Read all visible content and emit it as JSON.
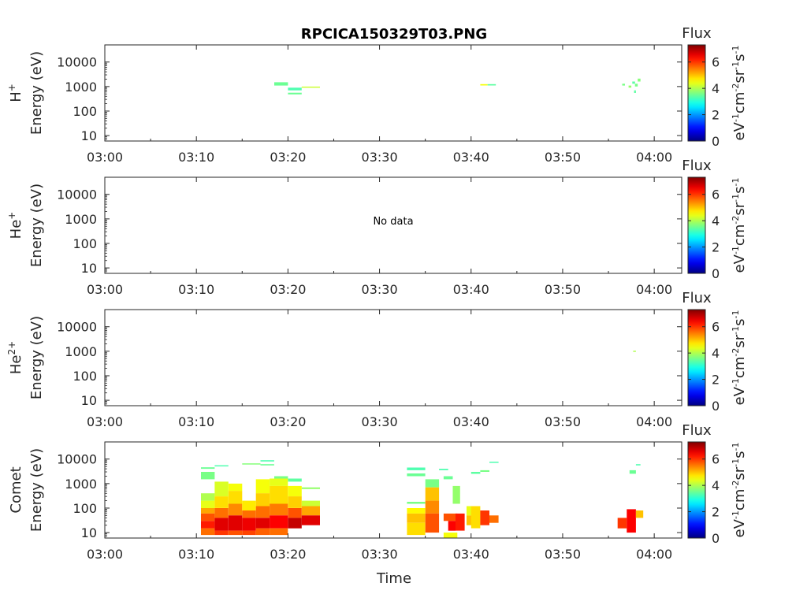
{
  "title": "RPCICA150329T03.PNG",
  "xlabel": "Time",
  "colorbar": {
    "label": "Flux",
    "units_base": [
      "eV",
      "cm",
      "sr",
      "s"
    ],
    "units_exp": [
      "-1",
      "-2",
      "-1",
      "-1"
    ],
    "ticks": [
      "0",
      "2",
      "4",
      "6"
    ],
    "range": [
      0,
      7.3
    ]
  },
  "colors": {
    "axis": "#262626",
    "background": "#ffffff"
  },
  "chart_data": [
    {
      "type": "heatmap",
      "species": "H",
      "species_sup": "+",
      "ylabel": "Energy (eV)",
      "yscale": "log",
      "ylim": [
        6,
        50000
      ],
      "yticks": [
        "10",
        "100",
        "1000",
        "10000"
      ],
      "xlim": [
        "03:00",
        "04:03"
      ],
      "xticks": [
        "03:00",
        "03:10",
        "03:20",
        "03:30",
        "03:40",
        "03:50",
        "04:00"
      ],
      "no_data": "",
      "cells": [
        {
          "t0": "03:18.5",
          "t1": "03:20.0",
          "e0": 1100,
          "e1": 1500,
          "flux": 3.5
        },
        {
          "t0": "03:20.0",
          "t1": "03:21.5",
          "e0": 700,
          "e1": 900,
          "flux": 3.3
        },
        {
          "t0": "03:20.0",
          "t1": "03:21.5",
          "e0": 480,
          "e1": 560,
          "flux": 3.5
        },
        {
          "t0": "03:21.5",
          "t1": "03:23.5",
          "e0": 900,
          "e1": 1000,
          "flux": 4.2
        },
        {
          "t0": "03:41.0",
          "t1": "03:41.8",
          "e0": 1100,
          "e1": 1250,
          "flux": 4.5
        },
        {
          "t0": "03:41.8",
          "t1": "03:42.7",
          "e0": 1100,
          "e1": 1250,
          "flux": 3.4
        },
        {
          "t0": "03:56.5",
          "t1": "03:56.8",
          "e0": 1100,
          "e1": 1300,
          "flux": 3.6
        },
        {
          "t0": "03:57.2",
          "t1": "03:57.5",
          "e0": 900,
          "e1": 1100,
          "flux": 3.8
        },
        {
          "t0": "03:57.6",
          "t1": "03:57.9",
          "e0": 1300,
          "e1": 1600,
          "flux": 3.4
        },
        {
          "t0": "03:57.9",
          "t1": "03:58.2",
          "e0": 1000,
          "e1": 1300,
          "flux": 3.6
        },
        {
          "t0": "03:58.2",
          "t1": "03:58.5",
          "e0": 1600,
          "e1": 2100,
          "flux": 3.7
        },
        {
          "t0": "03:57.8",
          "t1": "03:58.0",
          "e0": 550,
          "e1": 700,
          "flux": 3.4
        }
      ]
    },
    {
      "type": "heatmap",
      "species": "He",
      "species_sup": "+",
      "ylabel": "Energy (eV)",
      "yscale": "log",
      "ylim": [
        6,
        50000
      ],
      "yticks": [
        "10",
        "100",
        "1000",
        "10000"
      ],
      "xlim": [
        "03:00",
        "04:03"
      ],
      "xticks": [
        "03:00",
        "03:10",
        "03:20",
        "03:30",
        "03:40",
        "03:50",
        "04:00"
      ],
      "no_data": "No data",
      "cells": []
    },
    {
      "type": "heatmap",
      "species": "He",
      "species_sup": "2+",
      "ylabel": "Energy (eV)",
      "yscale": "log",
      "ylim": [
        6,
        50000
      ],
      "yticks": [
        "10",
        "100",
        "1000",
        "10000"
      ],
      "xlim": [
        "03:00",
        "04:03"
      ],
      "xticks": [
        "03:00",
        "03:10",
        "03:20",
        "03:30",
        "03:40",
        "03:50",
        "04:00"
      ],
      "no_data": "",
      "cells": [
        {
          "t0": "03:57.7",
          "t1": "03:58.0",
          "e0": 950,
          "e1": 1050,
          "flux": 4.0
        }
      ]
    },
    {
      "type": "heatmap",
      "species": "Comet",
      "species_sup": "",
      "ylabel": "Energy (eV)",
      "yscale": "log",
      "ylim": [
        6,
        50000
      ],
      "yticks": [
        "10",
        "100",
        "1000",
        "10000"
      ],
      "xlim": [
        "03:00",
        "04:03"
      ],
      "xticks": [
        "03:00",
        "03:10",
        "03:20",
        "03:30",
        "03:40",
        "03:50",
        "04:00"
      ],
      "no_data": "",
      "cells": [
        {
          "t0": "03:10.5",
          "t1": "03:12.0",
          "e0": 4000,
          "e1": 4600,
          "flux": 3.5
        },
        {
          "t0": "03:10.5",
          "t1": "03:12.0",
          "e0": 1500,
          "e1": 3000,
          "flux": 3.6
        },
        {
          "t0": "03:12.0",
          "t1": "03:13.5",
          "e0": 5000,
          "e1": 5600,
          "flux": 3.3
        },
        {
          "t0": "03:15.0",
          "t1": "03:17.0",
          "e0": 6000,
          "e1": 6700,
          "flux": 3.7
        },
        {
          "t0": "03:17.0",
          "t1": "03:18.5",
          "e0": 8000,
          "e1": 9000,
          "flux": 3.3
        },
        {
          "t0": "03:17.0",
          "t1": "03:18.5",
          "e0": 5500,
          "e1": 6200,
          "flux": 3.5
        },
        {
          "t0": "03:18.5",
          "t1": "03:20.0",
          "e0": 1500,
          "e1": 2000,
          "flux": 3.6
        },
        {
          "t0": "03:20.0",
          "t1": "03:21.5",
          "e0": 1200,
          "e1": 1600,
          "flux": 3.4
        },
        {
          "t0": "03:21.5",
          "t1": "03:23.5",
          "e0": 600,
          "e1": 700,
          "flux": 3.8
        },
        {
          "t0": "03:10.5",
          "t1": "03:12.0",
          "e0": 200,
          "e1": 400,
          "flux": 4.0
        },
        {
          "t0": "03:10.5",
          "t1": "03:12.0",
          "e0": 100,
          "e1": 200,
          "flux": 4.4
        },
        {
          "t0": "03:10.5",
          "t1": "03:12.0",
          "e0": 60,
          "e1": 100,
          "flux": 5.2
        },
        {
          "t0": "03:10.5",
          "t1": "03:12.0",
          "e0": 30,
          "e1": 60,
          "flux": 5.8
        },
        {
          "t0": "03:10.5",
          "t1": "03:12.0",
          "e0": 15,
          "e1": 30,
          "flux": 6.2
        },
        {
          "t0": "03:10.5",
          "t1": "03:12.0",
          "e0": 8,
          "e1": 15,
          "flux": 5.6
        },
        {
          "t0": "03:12.0",
          "t1": "03:13.5",
          "e0": 300,
          "e1": 1200,
          "flux": 4.3
        },
        {
          "t0": "03:12.0",
          "t1": "03:13.5",
          "e0": 100,
          "e1": 300,
          "flux": 4.8
        },
        {
          "t0": "03:12.0",
          "t1": "03:13.5",
          "e0": 40,
          "e1": 100,
          "flux": 5.6
        },
        {
          "t0": "03:12.0",
          "t1": "03:13.5",
          "e0": 12,
          "e1": 40,
          "flux": 6.6
        },
        {
          "t0": "03:12.0",
          "t1": "03:13.5",
          "e0": 8,
          "e1": 12,
          "flux": 6.0
        },
        {
          "t0": "03:13.5",
          "t1": "03:15.0",
          "e0": 500,
          "e1": 1000,
          "flux": 4.5
        },
        {
          "t0": "03:13.5",
          "t1": "03:15.0",
          "e0": 150,
          "e1": 500,
          "flux": 4.8
        },
        {
          "t0": "03:13.5",
          "t1": "03:15.0",
          "e0": 50,
          "e1": 150,
          "flux": 5.4
        },
        {
          "t0": "03:13.5",
          "t1": "03:15.0",
          "e0": 12,
          "e1": 50,
          "flux": 6.6
        },
        {
          "t0": "03:13.5",
          "t1": "03:15.0",
          "e0": 8,
          "e1": 12,
          "flux": 5.8
        },
        {
          "t0": "03:15.0",
          "t1": "03:16.5",
          "e0": 80,
          "e1": 200,
          "flux": 4.7
        },
        {
          "t0": "03:15.0",
          "t1": "03:16.5",
          "e0": 40,
          "e1": 80,
          "flux": 5.6
        },
        {
          "t0": "03:15.0",
          "t1": "03:16.5",
          "e0": 12,
          "e1": 40,
          "flux": 6.5
        },
        {
          "t0": "03:15.0",
          "t1": "03:16.5",
          "e0": 8,
          "e1": 12,
          "flux": 5.9
        },
        {
          "t0": "03:16.5",
          "t1": "03:18.0",
          "e0": 400,
          "e1": 1500,
          "flux": 4.5
        },
        {
          "t0": "03:16.5",
          "t1": "03:18.0",
          "e0": 120,
          "e1": 400,
          "flux": 4.9
        },
        {
          "t0": "03:16.5",
          "t1": "03:18.0",
          "e0": 40,
          "e1": 120,
          "flux": 5.6
        },
        {
          "t0": "03:16.5",
          "t1": "03:18.0",
          "e0": 15,
          "e1": 40,
          "flux": 6.6
        },
        {
          "t0": "03:16.5",
          "t1": "03:18.0",
          "e0": 8,
          "e1": 15,
          "flux": 5.7
        },
        {
          "t0": "03:18.0",
          "t1": "03:20.0",
          "e0": 800,
          "e1": 1600,
          "flux": 4.4
        },
        {
          "t0": "03:18.0",
          "t1": "03:20.0",
          "e0": 150,
          "e1": 800,
          "flux": 4.8
        },
        {
          "t0": "03:18.0",
          "t1": "03:20.0",
          "e0": 50,
          "e1": 150,
          "flux": 5.5
        },
        {
          "t0": "03:18.0",
          "t1": "03:20.0",
          "e0": 15,
          "e1": 50,
          "flux": 6.4
        },
        {
          "t0": "03:18.0",
          "t1": "03:20.0",
          "e0": 8,
          "e1": 15,
          "flux": 5.6
        },
        {
          "t0": "03:20.0",
          "t1": "03:21.5",
          "e0": 300,
          "e1": 800,
          "flux": 4.5
        },
        {
          "t0": "03:20.0",
          "t1": "03:21.5",
          "e0": 100,
          "e1": 300,
          "flux": 4.9
        },
        {
          "t0": "03:20.0",
          "t1": "03:21.5",
          "e0": 40,
          "e1": 100,
          "flux": 5.8
        },
        {
          "t0": "03:20.0",
          "t1": "03:21.5",
          "e0": 15,
          "e1": 40,
          "flux": 6.8
        },
        {
          "t0": "03:21.5",
          "t1": "03:23.5",
          "e0": 120,
          "e1": 200,
          "flux": 4.2
        },
        {
          "t0": "03:21.5",
          "t1": "03:23.5",
          "e0": 50,
          "e1": 120,
          "flux": 5.2
        },
        {
          "t0": "03:21.5",
          "t1": "03:23.5",
          "e0": 20,
          "e1": 50,
          "flux": 6.6
        },
        {
          "t0": "03:33.0",
          "t1": "03:35.0",
          "e0": 3500,
          "e1": 4500,
          "flux": 3.3
        },
        {
          "t0": "03:33.0",
          "t1": "03:35.0",
          "e0": 2000,
          "e1": 2600,
          "flux": 3.5
        },
        {
          "t0": "03:33.0",
          "t1": "03:35.0",
          "e0": 150,
          "e1": 180,
          "flux": 3.6
        },
        {
          "t0": "03:33.0",
          "t1": "03:35.0",
          "e0": 60,
          "e1": 100,
          "flux": 4.6
        },
        {
          "t0": "03:33.0",
          "t1": "03:35.0",
          "e0": 25,
          "e1": 60,
          "flux": 5.0
        },
        {
          "t0": "03:33.0",
          "t1": "03:35.0",
          "e0": 8,
          "e1": 25,
          "flux": 4.8
        },
        {
          "t0": "03:35.0",
          "t1": "03:36.5",
          "e0": 700,
          "e1": 1500,
          "flux": 3.6
        },
        {
          "t0": "03:35.0",
          "t1": "03:36.5",
          "e0": 200,
          "e1": 700,
          "flux": 5.0
        },
        {
          "t0": "03:35.0",
          "t1": "03:36.5",
          "e0": 60,
          "e1": 200,
          "flux": 5.4
        },
        {
          "t0": "03:35.0",
          "t1": "03:36.5",
          "e0": 10,
          "e1": 60,
          "flux": 5.8
        },
        {
          "t0": "03:36.5",
          "t1": "03:37.5",
          "e0": 3500,
          "e1": 4000,
          "flux": 3.3
        },
        {
          "t0": "03:37.0",
          "t1": "03:38.0",
          "e0": 1500,
          "e1": 2000,
          "flux": 3.5
        },
        {
          "t0": "03:37.0",
          "t1": "03:38.5",
          "e0": 30,
          "e1": 60,
          "flux": 5.8
        },
        {
          "t0": "03:37.5",
          "t1": "03:38.3",
          "e0": 12,
          "e1": 30,
          "flux": 6.4
        },
        {
          "t0": "03:37.0",
          "t1": "03:38.5",
          "e0": 6,
          "e1": 10,
          "flux": 4.5
        },
        {
          "t0": "03:38.0",
          "t1": "03:38.8",
          "e0": 150,
          "e1": 800,
          "flux": 3.8
        },
        {
          "t0": "03:38.3",
          "t1": "03:39.3",
          "e0": 12,
          "e1": 60,
          "flux": 6.2
        },
        {
          "t0": "03:39.5",
          "t1": "03:40.5",
          "e0": 50,
          "e1": 120,
          "flux": 4.4
        },
        {
          "t0": "03:39.5",
          "t1": "03:40.5",
          "e0": 20,
          "e1": 50,
          "flux": 5.0
        },
        {
          "t0": "03:40.0",
          "t1": "03:41.0",
          "e0": 15,
          "e1": 120,
          "flux": 4.8
        },
        {
          "t0": "03:41.0",
          "t1": "03:42.0",
          "e0": 20,
          "e1": 80,
          "flux": 6.0
        },
        {
          "t0": "03:42.0",
          "t1": "03:43.0",
          "e0": 25,
          "e1": 50,
          "flux": 5.6
        },
        {
          "t0": "03:40.0",
          "t1": "03:41.0",
          "e0": 2500,
          "e1": 3000,
          "flux": 3.4
        },
        {
          "t0": "03:41.0",
          "t1": "03:42.0",
          "e0": 3000,
          "e1": 3500,
          "flux": 3.6
        },
        {
          "t0": "03:42.0",
          "t1": "03:43.0",
          "e0": 7000,
          "e1": 7800,
          "flux": 3.3
        },
        {
          "t0": "03:56.0",
          "t1": "03:57.0",
          "e0": 15,
          "e1": 40,
          "flux": 6.0
        },
        {
          "t0": "03:57.0",
          "t1": "03:58.0",
          "e0": 10,
          "e1": 90,
          "flux": 6.4
        },
        {
          "t0": "03:58.0",
          "t1": "03:58.8",
          "e0": 40,
          "e1": 80,
          "flux": 5.0
        },
        {
          "t0": "03:57.3",
          "t1": "03:58.0",
          "e0": 2500,
          "e1": 3500,
          "flux": 3.5
        },
        {
          "t0": "03:58.0",
          "t1": "03:58.5",
          "e0": 5500,
          "e1": 6200,
          "flux": 3.3
        }
      ]
    }
  ]
}
